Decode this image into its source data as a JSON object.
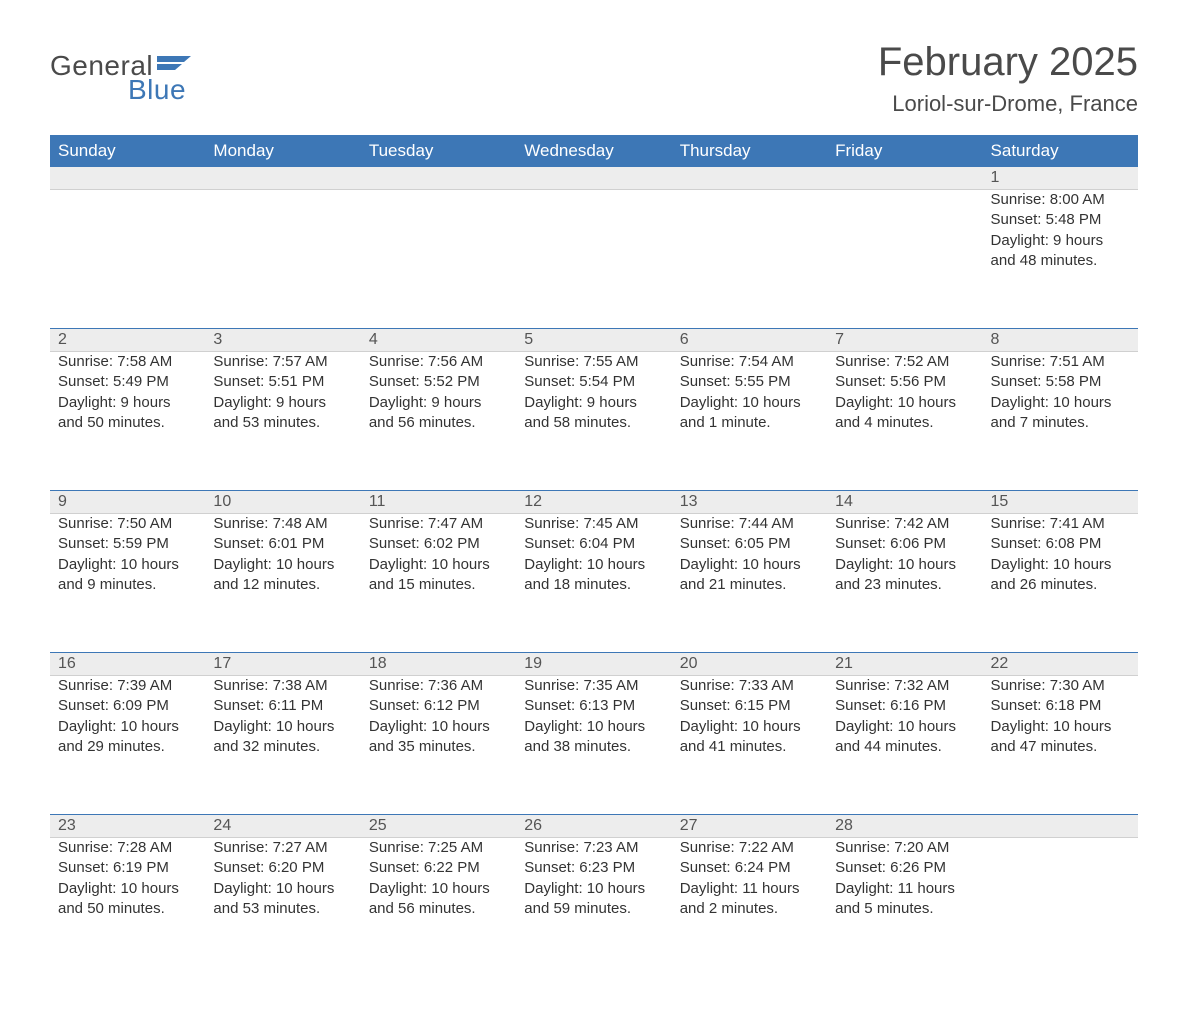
{
  "logo": {
    "general": "General",
    "blue": "Blue",
    "flag_color": "#3d77b6"
  },
  "title": "February 2025",
  "location": "Loriol-sur-Drome, France",
  "colors": {
    "header_bg": "#3d77b6",
    "header_text": "#ffffff",
    "daynum_bg": "#ededed",
    "row_top_border": "#3d77b6",
    "body_text": "#333333",
    "title_text": "#4a4a4a"
  },
  "weekdays": [
    "Sunday",
    "Monday",
    "Tuesday",
    "Wednesday",
    "Thursday",
    "Friday",
    "Saturday"
  ],
  "weeks": [
    [
      null,
      null,
      null,
      null,
      null,
      null,
      {
        "n": "1",
        "sr": "Sunrise: 8:00 AM",
        "ss": "Sunset: 5:48 PM",
        "d1": "Daylight: 9 hours",
        "d2": "and 48 minutes."
      }
    ],
    [
      {
        "n": "2",
        "sr": "Sunrise: 7:58 AM",
        "ss": "Sunset: 5:49 PM",
        "d1": "Daylight: 9 hours",
        "d2": "and 50 minutes."
      },
      {
        "n": "3",
        "sr": "Sunrise: 7:57 AM",
        "ss": "Sunset: 5:51 PM",
        "d1": "Daylight: 9 hours",
        "d2": "and 53 minutes."
      },
      {
        "n": "4",
        "sr": "Sunrise: 7:56 AM",
        "ss": "Sunset: 5:52 PM",
        "d1": "Daylight: 9 hours",
        "d2": "and 56 minutes."
      },
      {
        "n": "5",
        "sr": "Sunrise: 7:55 AM",
        "ss": "Sunset: 5:54 PM",
        "d1": "Daylight: 9 hours",
        "d2": "and 58 minutes."
      },
      {
        "n": "6",
        "sr": "Sunrise: 7:54 AM",
        "ss": "Sunset: 5:55 PM",
        "d1": "Daylight: 10 hours",
        "d2": "and 1 minute."
      },
      {
        "n": "7",
        "sr": "Sunrise: 7:52 AM",
        "ss": "Sunset: 5:56 PM",
        "d1": "Daylight: 10 hours",
        "d2": "and 4 minutes."
      },
      {
        "n": "8",
        "sr": "Sunrise: 7:51 AM",
        "ss": "Sunset: 5:58 PM",
        "d1": "Daylight: 10 hours",
        "d2": "and 7 minutes."
      }
    ],
    [
      {
        "n": "9",
        "sr": "Sunrise: 7:50 AM",
        "ss": "Sunset: 5:59 PM",
        "d1": "Daylight: 10 hours",
        "d2": "and 9 minutes."
      },
      {
        "n": "10",
        "sr": "Sunrise: 7:48 AM",
        "ss": "Sunset: 6:01 PM",
        "d1": "Daylight: 10 hours",
        "d2": "and 12 minutes."
      },
      {
        "n": "11",
        "sr": "Sunrise: 7:47 AM",
        "ss": "Sunset: 6:02 PM",
        "d1": "Daylight: 10 hours",
        "d2": "and 15 minutes."
      },
      {
        "n": "12",
        "sr": "Sunrise: 7:45 AM",
        "ss": "Sunset: 6:04 PM",
        "d1": "Daylight: 10 hours",
        "d2": "and 18 minutes."
      },
      {
        "n": "13",
        "sr": "Sunrise: 7:44 AM",
        "ss": "Sunset: 6:05 PM",
        "d1": "Daylight: 10 hours",
        "d2": "and 21 minutes."
      },
      {
        "n": "14",
        "sr": "Sunrise: 7:42 AM",
        "ss": "Sunset: 6:06 PM",
        "d1": "Daylight: 10 hours",
        "d2": "and 23 minutes."
      },
      {
        "n": "15",
        "sr": "Sunrise: 7:41 AM",
        "ss": "Sunset: 6:08 PM",
        "d1": "Daylight: 10 hours",
        "d2": "and 26 minutes."
      }
    ],
    [
      {
        "n": "16",
        "sr": "Sunrise: 7:39 AM",
        "ss": "Sunset: 6:09 PM",
        "d1": "Daylight: 10 hours",
        "d2": "and 29 minutes."
      },
      {
        "n": "17",
        "sr": "Sunrise: 7:38 AM",
        "ss": "Sunset: 6:11 PM",
        "d1": "Daylight: 10 hours",
        "d2": "and 32 minutes."
      },
      {
        "n": "18",
        "sr": "Sunrise: 7:36 AM",
        "ss": "Sunset: 6:12 PM",
        "d1": "Daylight: 10 hours",
        "d2": "and 35 minutes."
      },
      {
        "n": "19",
        "sr": "Sunrise: 7:35 AM",
        "ss": "Sunset: 6:13 PM",
        "d1": "Daylight: 10 hours",
        "d2": "and 38 minutes."
      },
      {
        "n": "20",
        "sr": "Sunrise: 7:33 AM",
        "ss": "Sunset: 6:15 PM",
        "d1": "Daylight: 10 hours",
        "d2": "and 41 minutes."
      },
      {
        "n": "21",
        "sr": "Sunrise: 7:32 AM",
        "ss": "Sunset: 6:16 PM",
        "d1": "Daylight: 10 hours",
        "d2": "and 44 minutes."
      },
      {
        "n": "22",
        "sr": "Sunrise: 7:30 AM",
        "ss": "Sunset: 6:18 PM",
        "d1": "Daylight: 10 hours",
        "d2": "and 47 minutes."
      }
    ],
    [
      {
        "n": "23",
        "sr": "Sunrise: 7:28 AM",
        "ss": "Sunset: 6:19 PM",
        "d1": "Daylight: 10 hours",
        "d2": "and 50 minutes."
      },
      {
        "n": "24",
        "sr": "Sunrise: 7:27 AM",
        "ss": "Sunset: 6:20 PM",
        "d1": "Daylight: 10 hours",
        "d2": "and 53 minutes."
      },
      {
        "n": "25",
        "sr": "Sunrise: 7:25 AM",
        "ss": "Sunset: 6:22 PM",
        "d1": "Daylight: 10 hours",
        "d2": "and 56 minutes."
      },
      {
        "n": "26",
        "sr": "Sunrise: 7:23 AM",
        "ss": "Sunset: 6:23 PM",
        "d1": "Daylight: 10 hours",
        "d2": "and 59 minutes."
      },
      {
        "n": "27",
        "sr": "Sunrise: 7:22 AM",
        "ss": "Sunset: 6:24 PM",
        "d1": "Daylight: 11 hours",
        "d2": "and 2 minutes."
      },
      {
        "n": "28",
        "sr": "Sunrise: 7:20 AM",
        "ss": "Sunset: 6:26 PM",
        "d1": "Daylight: 11 hours",
        "d2": "and 5 minutes."
      },
      null
    ]
  ]
}
